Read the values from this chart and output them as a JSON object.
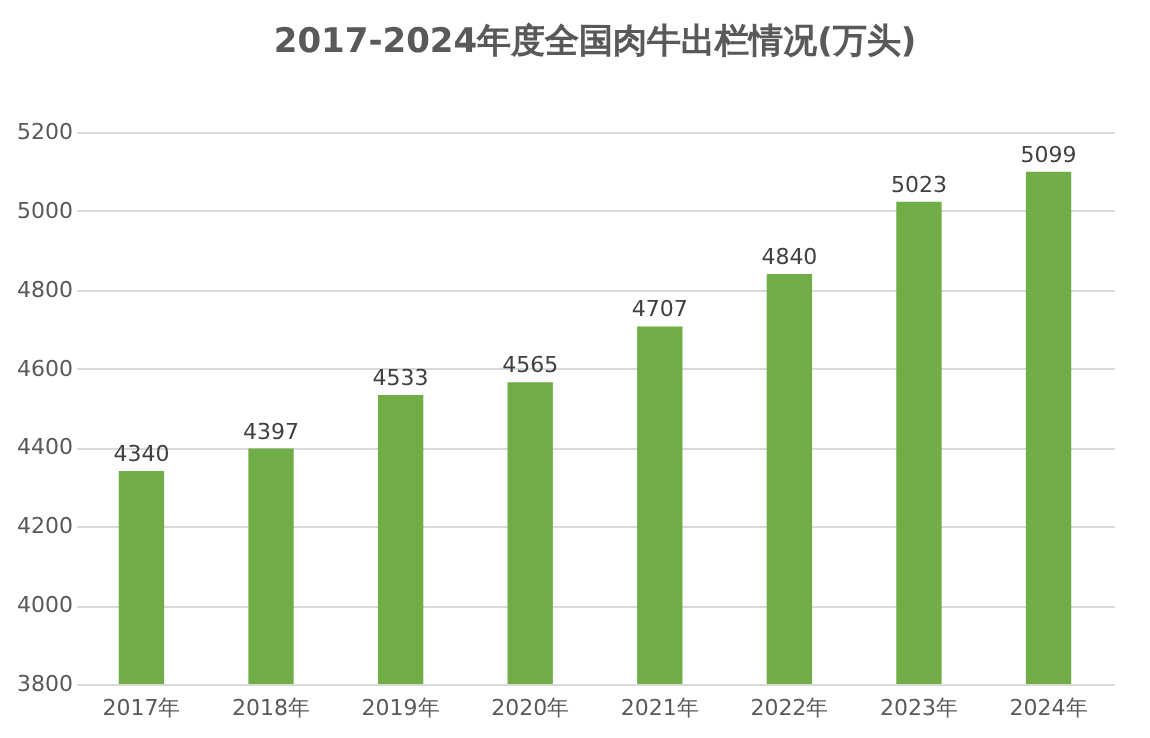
{
  "chart_data": {
    "type": "bar",
    "title": "2017-2024年度全国肉牛出栏情况(万头)",
    "categories": [
      "2017年",
      "2018年",
      "2019年",
      "2020年",
      "2021年",
      "2022年",
      "2023年",
      "2024年"
    ],
    "values": [
      4340,
      4397,
      4533,
      4565,
      4707,
      4840,
      5023,
      5099
    ],
    "color": "#70ad47",
    "ylim": [
      3800,
      5200
    ],
    "yticks": [
      3800,
      4000,
      4200,
      4400,
      4600,
      4800,
      5000,
      5200
    ],
    "grid": "y",
    "data_labels": true
  }
}
